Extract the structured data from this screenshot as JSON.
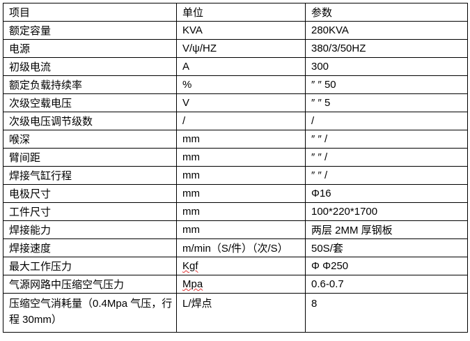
{
  "header": [
    "项目",
    "单位",
    "参数"
  ],
  "rows": [
    [
      "额定容量",
      "KVA",
      "280KVA"
    ],
    [
      "电源",
      "V/ψ/HZ",
      "380/3/50HZ"
    ],
    [
      "初级电流",
      "A",
      "300"
    ],
    [
      "额定负载持续率",
      "%",
      "″ ″ 50"
    ],
    [
      "次级空载电压",
      "V",
      "″ ″ 5"
    ],
    [
      "次级电压调节级数",
      "/",
      "/"
    ],
    [
      "喉深",
      "mm",
      "″ ″ /"
    ],
    [
      "臂间距",
      "mm",
      "″ ″ /"
    ],
    [
      "焊接气缸行程",
      "mm",
      "″ ″ /"
    ],
    [
      "电极尺寸",
      "mm",
      "Φ16"
    ],
    [
      "工件尺寸",
      "mm",
      "100*220*1700"
    ],
    [
      "焊接能力",
      "mm",
      "两层 2MM 厚钢板"
    ],
    [
      "焊接速度",
      "m/min（S/件）（次/S）",
      "50S/套"
    ],
    [
      "最大工作压力",
      "Kgf",
      "Φ Φ250"
    ],
    [
      "气源网路中压缩空气压力",
      "Mpa",
      "0.6-0.7"
    ],
    [
      "压缩空气消耗量（0.4Mpa 气压，行程 30mm）",
      "L/焊点",
      "8"
    ]
  ]
}
